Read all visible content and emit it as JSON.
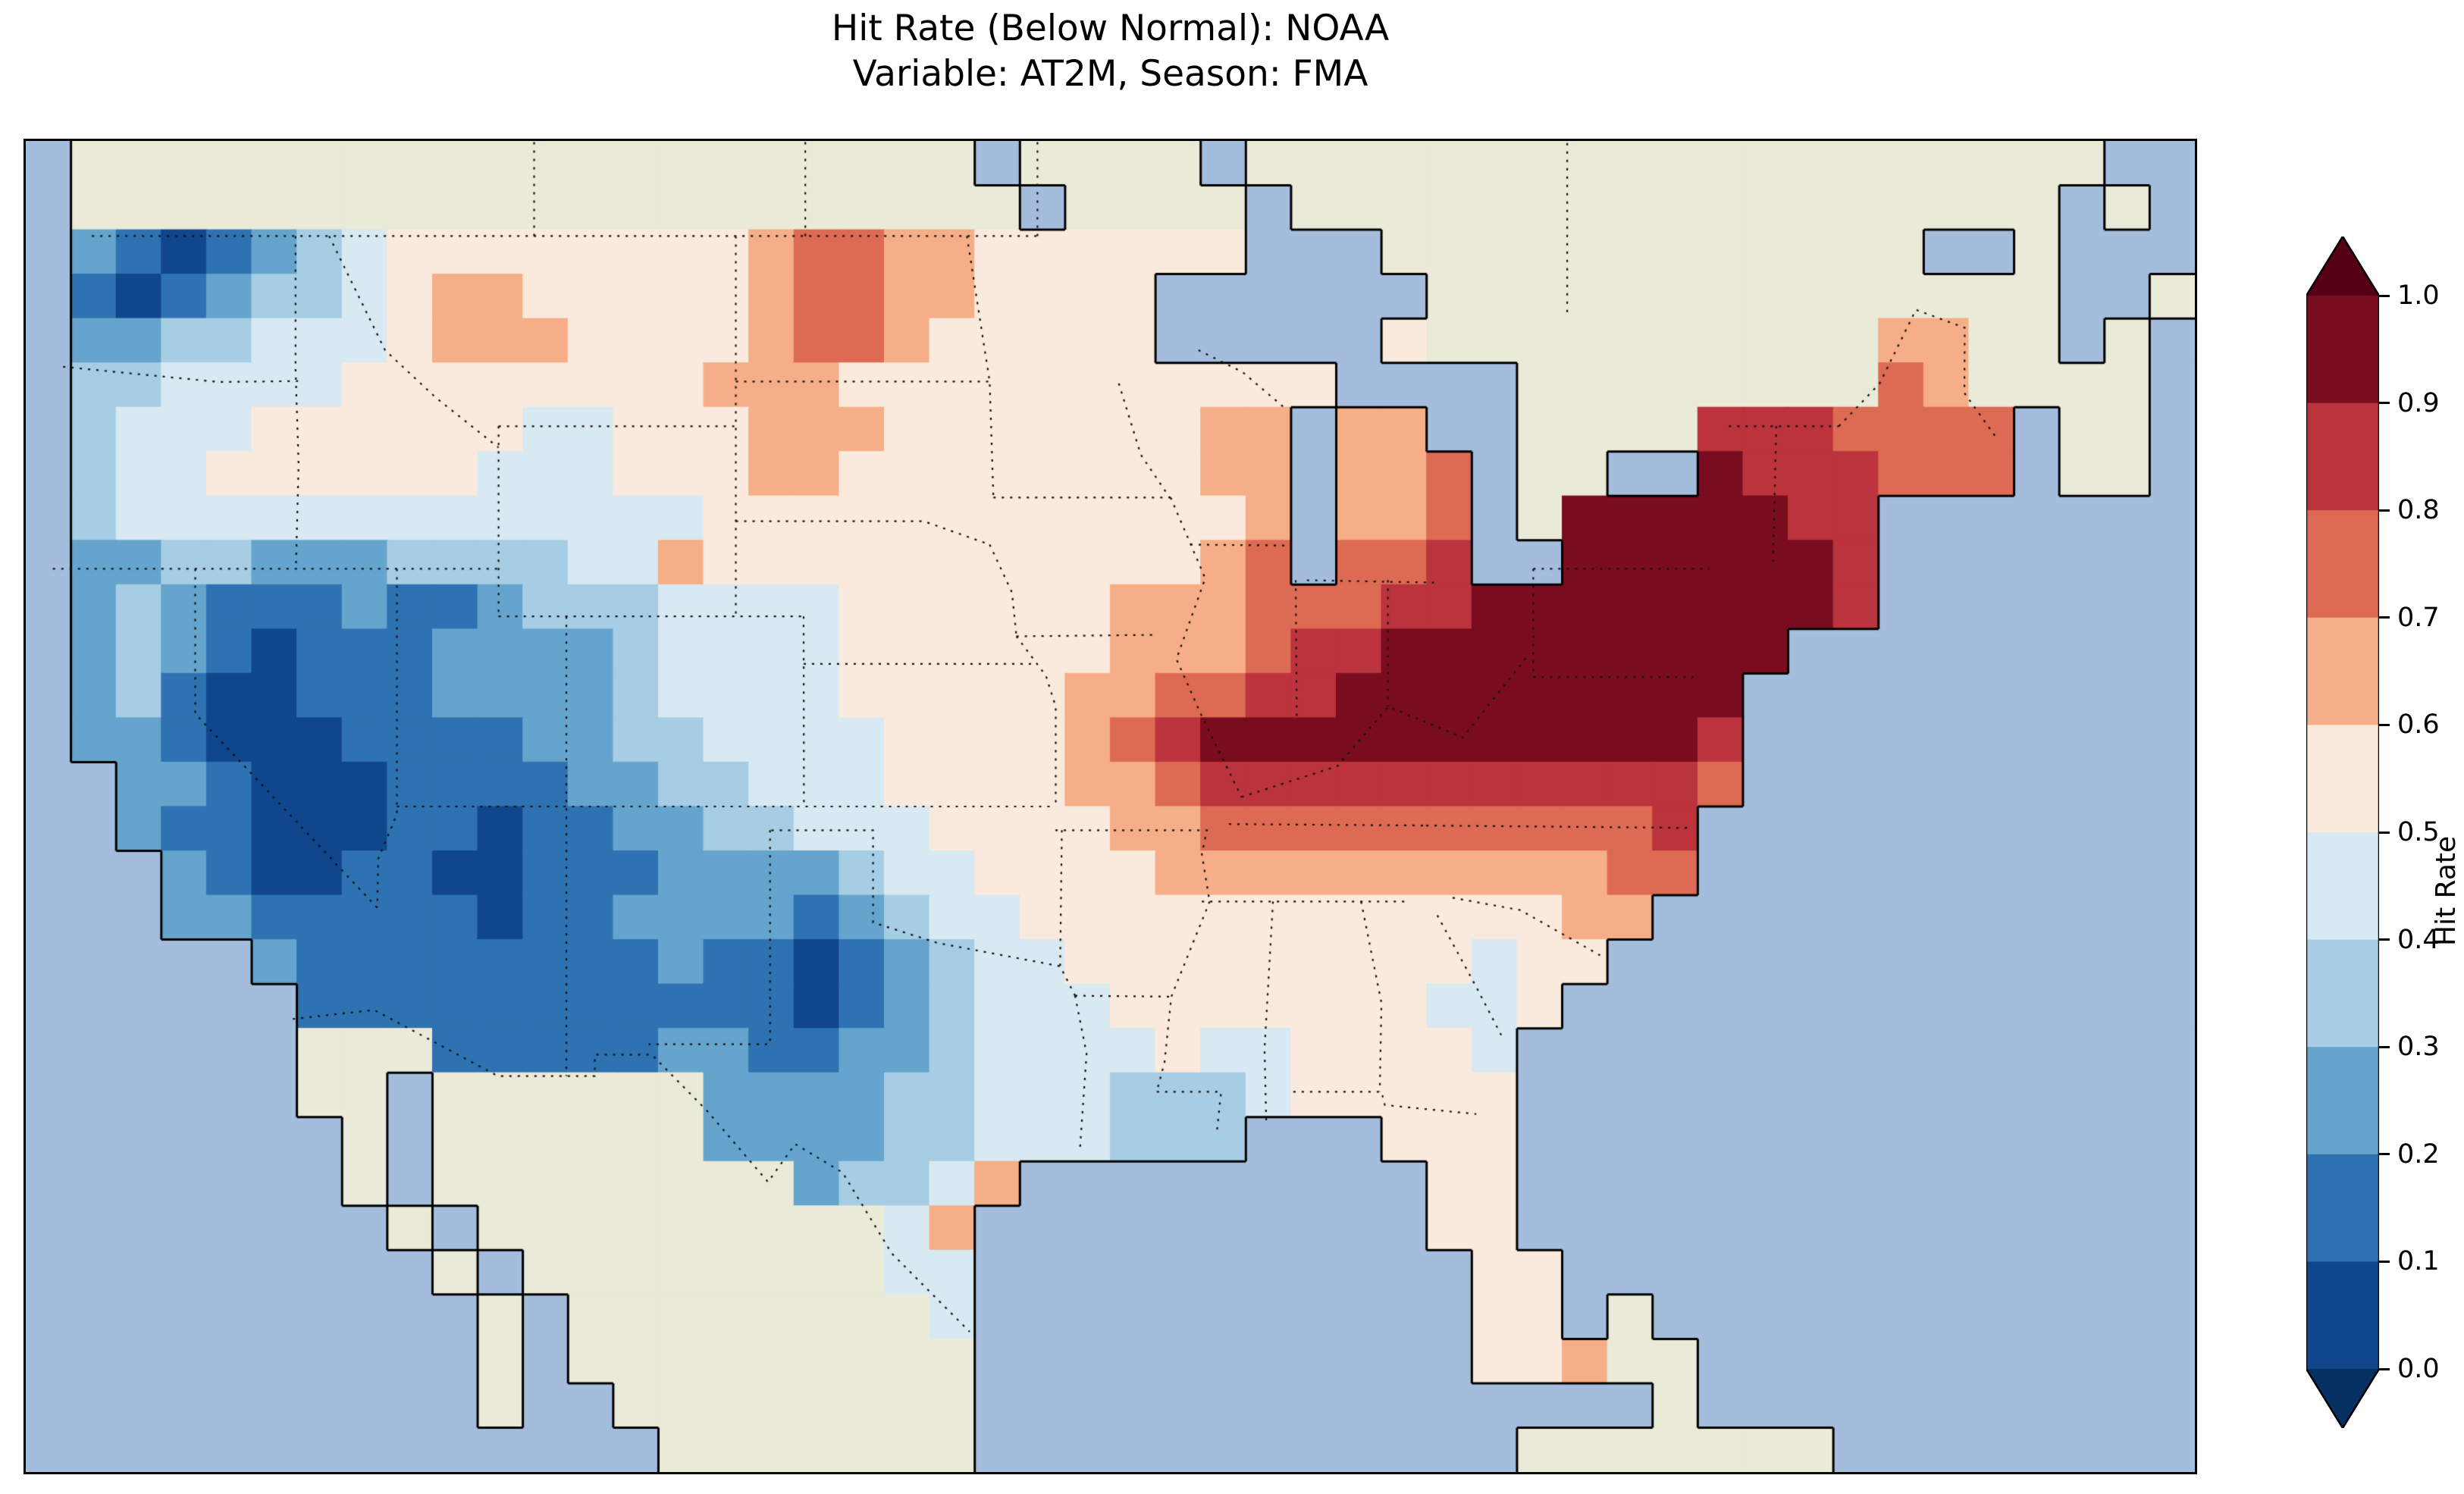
{
  "title": {
    "line1": "Hit Rate (Below Normal): NOAA",
    "line2": "Variable: AT2M, Season: FMA"
  },
  "colorbar": {
    "label": "Hit Rate",
    "ticks": [
      "1.0",
      "0.9",
      "0.8",
      "0.7",
      "0.6",
      "0.5",
      "0.4",
      "0.3",
      "0.2",
      "0.1",
      "0.0"
    ]
  },
  "chart_data": {
    "type": "heatmap",
    "title": "Hit Rate (Below Normal): NOAA\nVariable: AT2M, Season: FMA",
    "metric": "Hit Rate (Below Normal)",
    "source": "NOAA",
    "variable": "AT2M",
    "season": "FMA",
    "colormap": "RdBu_r, discrete 0.1 bins, extended both ends",
    "value_range": [
      0.0,
      1.0
    ],
    "legend_position": "right",
    "grid": {
      "lon_min": -125,
      "lon_max": -61,
      "lat_min": 23,
      "lat_max": 51,
      "ncols": 48,
      "nrows": 30,
      "encoding": {
        "~": "water (ocean / great lakes)",
        "L": "non-US land (no data, beige)",
        "digit d": "US hit-rate bin: value in [d/10,(d+1)/10]"
      },
      "rows": [
        "~LLLLLLLLLLLLLLLLLLLL~LLLL~LLLLLLLLLLLLLLLLLLL~~",
        "~LLLLLLLLLLLLLLLLLLLLL~LLLL~LLLLLLLLLLLLLLLLL~L~",
        "~21012345555555567766555555~~~LLLLLLLLLLLL~~L~~~",
        "~101233456655555677665555~~~~~~LLLLLLLLLLLLLL~~L",
        "~223344456665555677655555~~~~~5LLLLLLLLLL66LL~L~",
        "~3344445555555566655555555555~~~~LLLLLLLL76LLLL~",
        "~344455555544555666555555566~66~~LLLL8887777~LL~",
        "~344555555444555665555555566~667~LL~~9888777~LL~",
        "~344444444444445555555555556~667~L9999988~~~~~~~",
        "~223322233334465555555555567~778~~9999998~~~~~~~",
        "~2321112112333444455555566677788999999998~~~~~~~",
        "~23210111222234444555555666788999999999~~~~~~~~~",
        "~2310011122223444455555667788999999999~~~~~~~~~~",
        "~2210001111223344445555678999999999998~~~~~~~~~~",
        "~~221000111122334445555667888888888887~~~~~~~~~~",
        "~~21100011011223344455556677777777778~~~~~~~~~~~",
        "~~~2100110011122223445555666666666677~~~~~~~~~~~",
        "~~~221111101122221234455555555555566~~~~~~~~~~~~",
        "~~~~~211111111211012344555555555455~~~~~~~~~~~~~",
        "~~~~~~1111111111101234445555555445~~~~~~~~~~~~~~",
        "~~~~~~LLL111112211223444454455554~~~~~~~~~~~~~~~",
        "~~~~~~LL~LLLLLL222233444333455555~~~~~~~~~~~~~~~",
        "~~~~~~~L~LLLLLL222233444333~~~555~~~~~~~~~~~~~~~",
        "~~~~~~~L~LLLLLLLL23346~~~~~~~~~55~~~~~~~~~~~~~~~",
        "~~~~~~~~L~LLLLLLLLL46~~~~~~~~~~55~~~~~~~~~~~~~~~",
        "~~~~~~~~~L~LLLLLLLL44~~~~~~~~~~~55~~~~~~~~~~~~~~",
        "~~~~~~~~~~L~LLLLLLLL4~~~~~~~~~~~55~L~~~~~~~~~~~~",
        "~~~~~~~~~~L~LLLLLLLLL~~~~~~~~~~~556LL~~~~~~~~~~~",
        "~~~~~~~~~~L~~LLLLLLLL~~~~~~~~~~~~~~~L~~~~~~~~~~~",
        "~~~~~~~~~~~~~~LLLLLLL~~~~~~~~~~~~LLLLLLL~~~~~~~~"
      ]
    },
    "palette": {
      "ocean": "#a5bddd",
      "land": "#eaead8",
      "coastline": "#000000",
      "border_line": "#111111",
      "bin_colors": [
        "#10468b",
        "#2e72b1",
        "#64a4cd",
        "#a6cde3",
        "#d9e9f1",
        "#faeadd",
        "#f5ae87",
        "#dd6a52",
        "#bb333c",
        "#7a0c20"
      ],
      "under": "#053061",
      "over": "#560016"
    },
    "state_borders": [
      [
        [
          -123.05,
          49
        ],
        [
          -95.15,
          49
        ]
      ],
      [
        [
          -95.15,
          49
        ],
        [
          -95.15,
          51.5
        ]
      ],
      [
        [
          -110,
          49
        ],
        [
          -110,
          51.5
        ]
      ],
      [
        [
          -102,
          49
        ],
        [
          -102,
          51.5
        ]
      ],
      [
        [
          -79.52,
          47.4
        ],
        [
          -79.52,
          51.5
        ]
      ],
      [
        [
          -74.75,
          45.0
        ],
        [
          -71.5,
          45.0
        ]
      ],
      [
        [
          -71.5,
          45.0
        ],
        [
          -70.3,
          45.9
        ],
        [
          -69.23,
          47.45
        ],
        [
          -67.79,
          47.07
        ],
        [
          -67.8,
          45.7
        ],
        [
          -66.9,
          44.8
        ]
      ],
      [
        [
          -117.04,
          49
        ],
        [
          -117.04,
          46.2
        ]
      ],
      [
        [
          -117.04,
          46.2
        ],
        [
          -116.95,
          44.2
        ],
        [
          -117.03,
          42
        ]
      ],
      [
        [
          -123.9,
          46.25
        ],
        [
          -119.3,
          45.93
        ],
        [
          -116.95,
          45.95
        ]
      ],
      [
        [
          -124.2,
          42
        ],
        [
          -111.05,
          42
        ]
      ],
      [
        [
          -120,
          42
        ],
        [
          -120,
          38.95
        ],
        [
          -114.63,
          34.87
        ]
      ],
      [
        [
          -114.05,
          42
        ],
        [
          -114.05,
          36.84
        ],
        [
          -114.6,
          35.9
        ],
        [
          -114.63,
          34.87
        ]
      ],
      [
        [
          -114.05,
          37
        ],
        [
          -94.62,
          37
        ]
      ],
      [
        [
          -109.05,
          41
        ],
        [
          -109.05,
          31.33
        ]
      ],
      [
        [
          -111.05,
          45
        ],
        [
          -111.05,
          41
        ]
      ],
      [
        [
          -111.05,
          45
        ],
        [
          -104.05,
          45
        ]
      ],
      [
        [
          -111.05,
          41
        ],
        [
          -102.05,
          41
        ]
      ],
      [
        [
          -104.05,
          49
        ],
        [
          -104.05,
          41
        ]
      ],
      [
        [
          -102.05,
          41
        ],
        [
          -102.04,
          37
        ]
      ],
      [
        [
          -102.05,
          40
        ],
        [
          -95.31,
          40
        ]
      ],
      [
        [
          -104.05,
          43
        ],
        [
          -98.5,
          43
        ],
        [
          -96.56,
          42.51
        ]
      ],
      [
        [
          -104.05,
          45.94
        ],
        [
          -96.56,
          45.94
        ]
      ],
      [
        [
          -97.23,
          49
        ],
        [
          -96.56,
          45.94
        ],
        [
          -96.45,
          43.5
        ]
      ],
      [
        [
          -96.45,
          43.5
        ],
        [
          -91.22,
          43.5
        ]
      ],
      [
        [
          -103,
          36.5
        ],
        [
          -100,
          36.5
        ],
        [
          -100,
          34.56
        ],
        [
          -98.1,
          34.13
        ],
        [
          -94.48,
          33.64
        ]
      ],
      [
        [
          -103.04,
          36.5
        ],
        [
          -103.04,
          32
        ],
        [
          -106.62,
          32
        ]
      ],
      [
        [
          -94.43,
          36.5
        ],
        [
          -94.48,
          33.64
        ],
        [
          -94.04,
          33.02
        ]
      ],
      [
        [
          -94.04,
          33.02
        ],
        [
          -91.17,
          33.0
        ]
      ],
      [
        [
          -94.04,
          33.02
        ],
        [
          -93.7,
          31.8
        ],
        [
          -93.9,
          29.75
        ]
      ],
      [
        [
          -94.62,
          36.5
        ],
        [
          -90.15,
          36.5
        ],
        [
          -90.3,
          36.0
        ],
        [
          -90.07,
          35.0
        ]
      ],
      [
        [
          -89.5,
          36.63
        ],
        [
          -83.68,
          36.6
        ]
      ],
      [
        [
          -83.68,
          36.6
        ],
        [
          -75.87,
          36.55
        ]
      ],
      [
        [
          -90.3,
          35.0
        ],
        [
          -84.32,
          35.0
        ]
      ],
      [
        [
          -85.6,
          35.0
        ],
        [
          -85.0,
          32.87
        ],
        [
          -85.05,
          31.0
        ]
      ],
      [
        [
          -88.2,
          35.0
        ],
        [
          -88.45,
          31.9
        ],
        [
          -88.4,
          30.4
        ]
      ],
      [
        [
          -87.6,
          31.0
        ],
        [
          -85.0,
          31.0
        ],
        [
          -84.9,
          30.72
        ],
        [
          -82.2,
          30.53
        ]
      ],
      [
        [
          -91.63,
          31.0
        ],
        [
          -89.73,
          31.0
        ],
        [
          -89.85,
          30.2
        ]
      ],
      [
        [
          -95.77,
          40.58
        ],
        [
          -91.72,
          40.61
        ]
      ],
      [
        [
          -90.64,
          42.51
        ],
        [
          -87.8,
          42.49
        ]
      ],
      [
        [
          -87.2,
          41.76
        ],
        [
          -83.45,
          41.71
        ]
      ],
      [
        [
          -87.53,
          41.76
        ],
        [
          -87.5,
          38.9
        ]
      ],
      [
        [
          -84.81,
          41.76
        ],
        [
          -84.81,
          39.1
        ]
      ],
      [
        [
          -80.52,
          42.0
        ],
        [
          -80.52,
          39.72
        ]
      ],
      [
        [
          -80.52,
          39.72
        ],
        [
          -75.79,
          39.72
        ]
      ],
      [
        [
          -80.52,
          42.0
        ],
        [
          -75.33,
          42.0
        ]
      ],
      [
        [
          -116.05,
          49
        ],
        [
          -114.4,
          46.6
        ],
        [
          -112.9,
          45.6
        ],
        [
          -111.05,
          44.55
        ]
      ],
      [
        [
          -82.9,
          35.08
        ],
        [
          -80.9,
          34.82
        ],
        [
          -78.55,
          33.87
        ]
      ],
      [
        [
          -83.35,
          34.71
        ],
        [
          -82.2,
          33.2
        ],
        [
          -81.4,
          32.1
        ]
      ],
      [
        [
          -92.75,
          45.9
        ],
        [
          -92.1,
          44.4
        ],
        [
          -91.25,
          43.5
        ]
      ],
      [
        [
          -91.22,
          43.5
        ],
        [
          -90.2,
          41.8
        ],
        [
          -91.05,
          40.1
        ],
        [
          -90.3,
          38.9
        ],
        [
          -89.13,
          37.2
        ]
      ],
      [
        [
          -89.13,
          37.2
        ],
        [
          -86.3,
          37.85
        ],
        [
          -84.8,
          39.1
        ],
        [
          -82.6,
          38.45
        ],
        [
          -80.65,
          40.2
        ]
      ],
      [
        [
          -90.07,
          35.0
        ],
        [
          -91.2,
          33.0
        ],
        [
          -91.4,
          31.62
        ],
        [
          -91.63,
          31.0
        ]
      ],
      [
        [
          -95.77,
          40.58
        ],
        [
          -94.9,
          39.75
        ],
        [
          -94.61,
          39.1
        ],
        [
          -94.61,
          37.0
        ]
      ],
      [
        [
          -96.56,
          42.51
        ],
        [
          -95.9,
          41.5
        ],
        [
          -95.77,
          40.58
        ]
      ],
      [
        [
          -73.35,
          45.0
        ],
        [
          -73.45,
          42.05
        ]
      ],
      [
        [
          -90.4,
          46.6
        ],
        [
          -89.1,
          46.14
        ],
        [
          -87.8,
          45.35
        ]
      ],
      [
        [
          -117.12,
          32.53
        ],
        [
          -114.72,
          32.72
        ],
        [
          -111.07,
          31.33
        ],
        [
          -108.21,
          31.33
        ],
        [
          -108.21,
          31.78
        ],
        [
          -106.53,
          31.78
        ],
        [
          -104.9,
          30.6
        ],
        [
          -103.1,
          29.1
        ],
        [
          -102.3,
          29.9
        ],
        [
          -100.9,
          29.3
        ],
        [
          -99.45,
          27.6
        ],
        [
          -97.15,
          25.95
        ]
      ]
    ]
  }
}
